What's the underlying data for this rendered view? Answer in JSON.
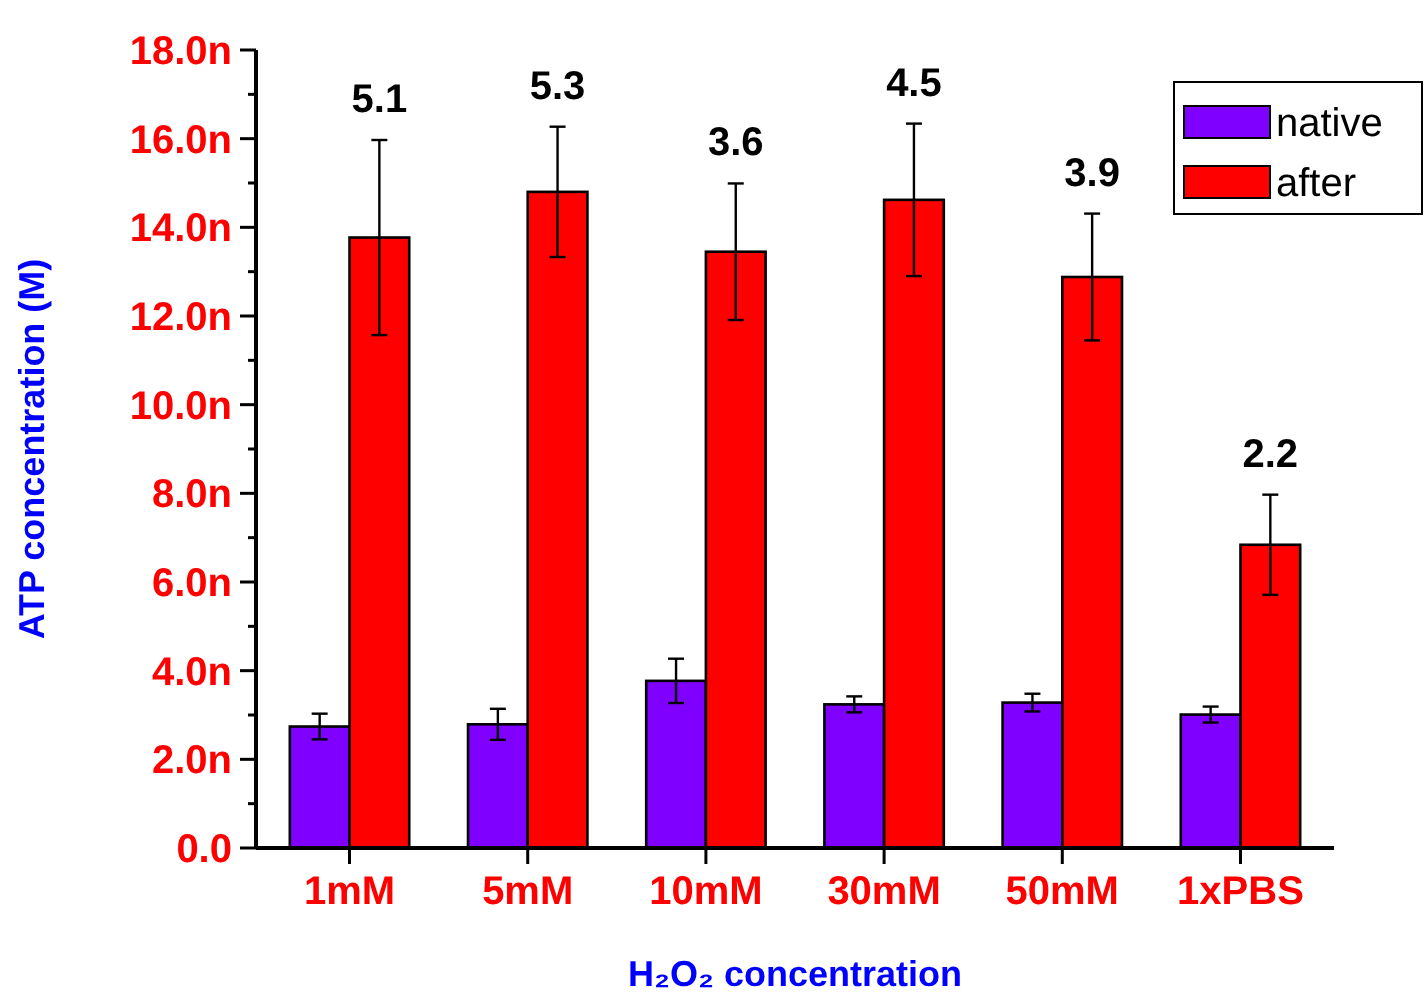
{
  "chart_data": {
    "type": "bar",
    "categories": [
      "1mM",
      "5mM",
      "10mM",
      "30mM",
      "50mM",
      "1xPBS"
    ],
    "series": [
      {
        "name": "native",
        "color": "#8000ff",
        "values": [
          2.74,
          2.79,
          3.77,
          3.24,
          3.28,
          3.01
        ],
        "errors": [
          0.29,
          0.35,
          0.5,
          0.18,
          0.2,
          0.18
        ]
      },
      {
        "name": "after",
        "color": "#ff0000",
        "values": [
          13.77,
          14.8,
          13.45,
          14.62,
          12.88,
          6.84
        ],
        "errors": [
          2.2,
          1.47,
          1.54,
          1.72,
          1.43,
          1.13
        ]
      }
    ],
    "xlabel": "H₂O₂ concentration",
    "ylabel": "ATP concentration (M)",
    "ylim": [
      0,
      18
    ],
    "yticks": [
      {
        "value": 0,
        "label": "0.0"
      },
      {
        "value": 1,
        "label": null
      },
      {
        "value": 2,
        "label": "2.0n"
      },
      {
        "value": 3,
        "label": null
      },
      {
        "value": 4,
        "label": "4.0n"
      },
      {
        "value": 5,
        "label": null
      },
      {
        "value": 6,
        "label": "6.0n"
      },
      {
        "value": 7,
        "label": null
      },
      {
        "value": 8,
        "label": "8.0n"
      },
      {
        "value": 9,
        "label": null
      },
      {
        "value": 10,
        "label": "10.0n"
      },
      {
        "value": 11,
        "label": null
      },
      {
        "value": 12,
        "label": "12.0n"
      },
      {
        "value": 13,
        "label": null
      },
      {
        "value": 14,
        "label": "14.0n"
      },
      {
        "value": 15,
        "label": null
      },
      {
        "value": 16,
        "label": "16.0n"
      },
      {
        "value": 17,
        "label": null
      },
      {
        "value": 18,
        "label": "18.0n"
      }
    ],
    "annotations": [
      "5.1",
      "5.3",
      "3.6",
      "4.5",
      "3.9",
      "2.2"
    ],
    "legend": "top right",
    "grid": false
  }
}
